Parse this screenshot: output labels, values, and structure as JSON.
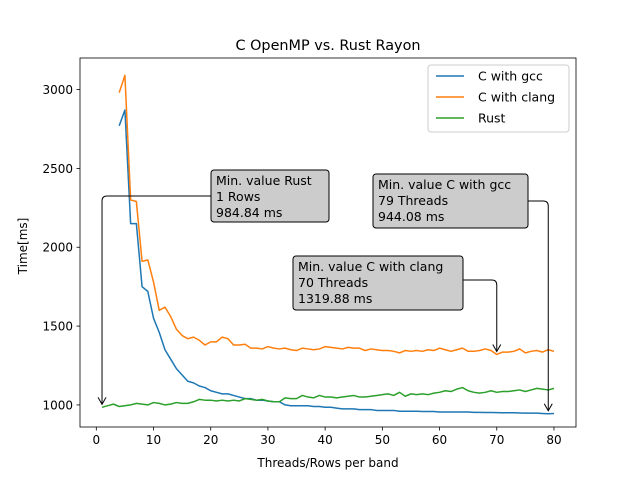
{
  "chart_data": {
    "type": "line",
    "title": "C OpenMP vs. Rust Rayon",
    "xlabel": "Threads/Rows per band",
    "ylabel": "Time[ms]",
    "xlim": [
      -2.85,
      83.85
    ],
    "ylim": [
      860,
      3200
    ],
    "xticks": [
      0,
      10,
      20,
      30,
      40,
      50,
      60,
      70,
      80
    ],
    "yticks": [
      1000,
      1500,
      2000,
      2500,
      3000
    ],
    "legend_position": "top-right",
    "series": [
      {
        "name": "C with gcc",
        "color": "#1f77b4",
        "x": [
          4,
          5,
          6,
          7,
          8,
          9,
          10,
          11,
          12,
          13,
          14,
          15,
          16,
          17,
          18,
          19,
          20,
          21,
          22,
          23,
          24,
          25,
          26,
          27,
          28,
          29,
          30,
          31,
          32,
          33,
          34,
          35,
          36,
          37,
          38,
          39,
          40,
          41,
          42,
          43,
          44,
          45,
          46,
          47,
          48,
          49,
          50,
          51,
          52,
          53,
          54,
          55,
          56,
          57,
          58,
          59,
          60,
          61,
          62,
          63,
          64,
          65,
          66,
          67,
          68,
          69,
          70,
          71,
          72,
          73,
          74,
          75,
          76,
          77,
          78,
          79,
          80
        ],
        "values": [
          2770,
          2870,
          2150,
          2150,
          1750,
          1720,
          1550,
          1460,
          1350,
          1290,
          1230,
          1190,
          1150,
          1140,
          1120,
          1110,
          1090,
          1080,
          1070,
          1070,
          1060,
          1050,
          1040,
          1040,
          1030,
          1030,
          1025,
          1020,
          1020,
          1000,
          995,
          995,
          995,
          995,
          990,
          990,
          985,
          985,
          980,
          975,
          975,
          975,
          970,
          970,
          970,
          965,
          965,
          965,
          965,
          960,
          960,
          960,
          960,
          958,
          958,
          958,
          955,
          955,
          955,
          955,
          955,
          955,
          953,
          953,
          952,
          952,
          951,
          950,
          950,
          950,
          949,
          948,
          948,
          948,
          946,
          944.08,
          946
        ]
      },
      {
        "name": "C with clang",
        "color": "#ff7f0e",
        "x": [
          4,
          5,
          6,
          7,
          8,
          9,
          10,
          11,
          12,
          13,
          14,
          15,
          16,
          17,
          18,
          19,
          20,
          21,
          22,
          23,
          24,
          25,
          26,
          27,
          28,
          29,
          30,
          31,
          32,
          33,
          34,
          35,
          36,
          37,
          38,
          39,
          40,
          41,
          42,
          43,
          44,
          45,
          46,
          47,
          48,
          49,
          50,
          51,
          52,
          53,
          54,
          55,
          56,
          57,
          58,
          59,
          60,
          61,
          62,
          63,
          64,
          65,
          66,
          67,
          68,
          69,
          70,
          71,
          72,
          73,
          74,
          75,
          76,
          77,
          78,
          79,
          80
        ],
        "values": [
          2980,
          3090,
          2300,
          2290,
          1910,
          1920,
          1780,
          1600,
          1620,
          1560,
          1480,
          1440,
          1420,
          1430,
          1410,
          1380,
          1400,
          1400,
          1430,
          1420,
          1380,
          1380,
          1385,
          1360,
          1360,
          1355,
          1370,
          1360,
          1355,
          1360,
          1350,
          1345,
          1360,
          1355,
          1350,
          1355,
          1370,
          1365,
          1360,
          1355,
          1365,
          1360,
          1360,
          1345,
          1355,
          1350,
          1345,
          1345,
          1340,
          1330,
          1345,
          1340,
          1345,
          1340,
          1350,
          1345,
          1360,
          1350,
          1340,
          1350,
          1360,
          1340,
          1340,
          1345,
          1355,
          1345,
          1319.88,
          1335,
          1335,
          1340,
          1355,
          1330,
          1340,
          1345,
          1335,
          1350,
          1340
        ]
      },
      {
        "name": "Rust",
        "color": "#2ca02c",
        "x": [
          1,
          2,
          3,
          4,
          5,
          6,
          7,
          8,
          9,
          10,
          11,
          12,
          13,
          14,
          15,
          16,
          17,
          18,
          19,
          20,
          21,
          22,
          23,
          24,
          25,
          26,
          27,
          28,
          29,
          30,
          31,
          32,
          33,
          34,
          35,
          36,
          37,
          38,
          39,
          40,
          41,
          42,
          43,
          44,
          45,
          46,
          47,
          48,
          49,
          50,
          51,
          52,
          53,
          54,
          55,
          56,
          57,
          58,
          59,
          60,
          61,
          62,
          63,
          64,
          65,
          66,
          67,
          68,
          69,
          70,
          71,
          72,
          73,
          74,
          75,
          76,
          77,
          78,
          79,
          80
        ],
        "values": [
          984.84,
          995,
          1005,
          990,
          995,
          1000,
          1010,
          1005,
          1000,
          1015,
          1010,
          1000,
          1005,
          1015,
          1010,
          1010,
          1020,
          1035,
          1030,
          1030,
          1025,
          1030,
          1025,
          1030,
          1025,
          1040,
          1035,
          1030,
          1035,
          1025,
          1020,
          1020,
          1045,
          1040,
          1040,
          1060,
          1050,
          1045,
          1060,
          1050,
          1050,
          1045,
          1050,
          1055,
          1060,
          1050,
          1050,
          1055,
          1060,
          1065,
          1070,
          1060,
          1080,
          1055,
          1070,
          1065,
          1070,
          1065,
          1075,
          1080,
          1090,
          1085,
          1100,
          1110,
          1090,
          1080,
          1075,
          1080,
          1090,
          1080,
          1085,
          1085,
          1090,
          1095,
          1085,
          1095,
          1105,
          1100,
          1095,
          1105
        ]
      }
    ],
    "annotations": [
      {
        "lines": [
          "Min. value Rust",
          "1 Rows",
          "984.84 ms"
        ],
        "target": [
          1,
          984.84
        ]
      },
      {
        "lines": [
          "Min. value C with gcc",
          "79 Threads",
          "944.08 ms"
        ],
        "target": [
          79,
          944.08
        ]
      },
      {
        "lines": [
          "Min. value C with clang",
          "70 Threads",
          "1319.88 ms"
        ],
        "target": [
          70,
          1319.88
        ]
      }
    ]
  }
}
